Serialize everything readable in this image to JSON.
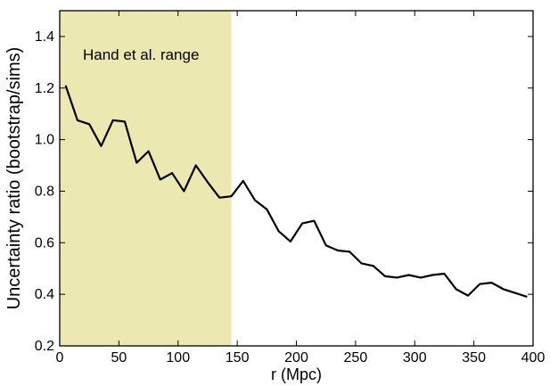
{
  "chart_data": {
    "type": "line",
    "title": "",
    "xlabel": "r (Mpc)",
    "ylabel": "Uncertainty ratio (bootstrap/sims)",
    "xlim": [
      0,
      400
    ],
    "ylim": [
      0.2,
      1.5
    ],
    "x_ticks": [
      0,
      50,
      100,
      150,
      200,
      250,
      300,
      350,
      400
    ],
    "y_ticks": [
      0.2,
      0.4,
      0.6,
      0.8,
      1.0,
      1.2,
      1.4
    ],
    "grid": false,
    "legend": "none",
    "shaded_region": {
      "x_start": 0,
      "x_end": 145,
      "label": "Hand et al. range",
      "color": "#ebe9b1"
    },
    "line_color": "#000000",
    "series": [
      {
        "x": [
          5,
          15,
          25,
          35,
          45,
          55,
          65,
          75,
          85,
          95,
          105,
          115,
          125,
          135,
          145,
          155,
          165,
          175,
          185,
          195,
          205,
          215,
          225,
          235,
          245,
          255,
          265,
          275,
          285,
          295,
          305,
          315,
          325,
          335,
          345,
          355,
          365,
          375,
          385,
          395
        ],
        "y": [
          1.21,
          1.075,
          1.06,
          0.975,
          1.075,
          1.07,
          0.91,
          0.955,
          0.845,
          0.87,
          0.8,
          0.9,
          0.835,
          0.775,
          0.78,
          0.84,
          0.765,
          0.73,
          0.645,
          0.605,
          0.675,
          0.685,
          0.59,
          0.57,
          0.565,
          0.52,
          0.51,
          0.47,
          0.465,
          0.475,
          0.465,
          0.475,
          0.48,
          0.42,
          0.395,
          0.44,
          0.445,
          0.42,
          0.405,
          0.39
        ]
      }
    ]
  }
}
